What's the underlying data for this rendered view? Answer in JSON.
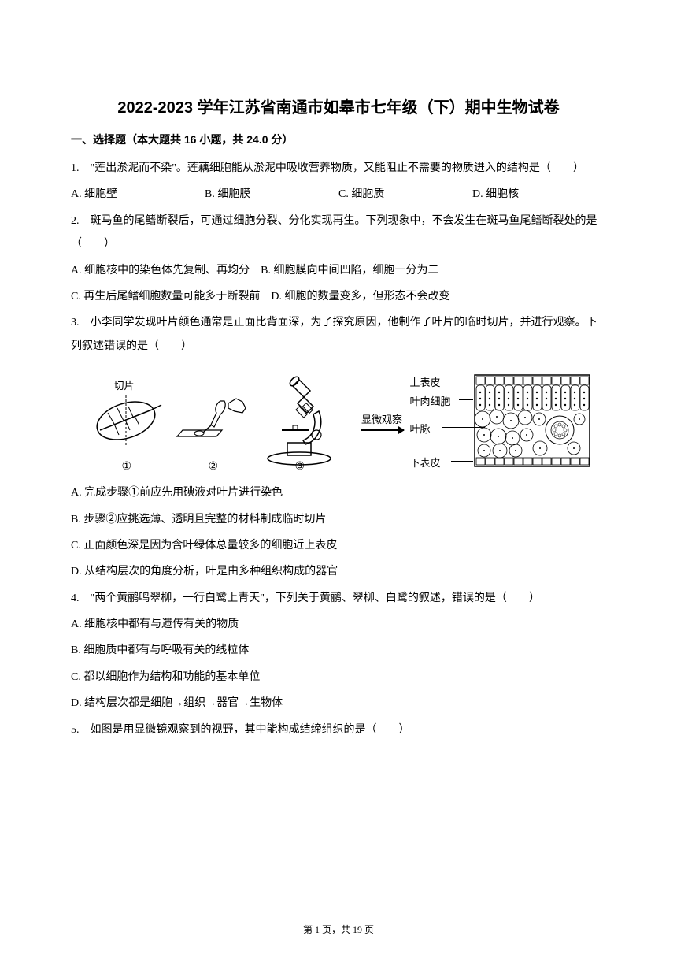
{
  "title": "2022-2023 学年江苏省南通市如皋市七年级（下）期中生物试卷",
  "section_header": "一、选择题（本大题共 16 小题，共 24.0 分）",
  "questions": [
    {
      "num": "1.",
      "text": "\"莲出淤泥而不染\"。莲藕细胞能从淤泥中吸收营养物质，又能阻止不需要的物质进入的结构是（　　）",
      "options": [
        "A. 细胞壁",
        "B. 细胞膜",
        "C. 细胞质",
        "D. 细胞核"
      ],
      "layout": "row4"
    },
    {
      "num": "2.",
      "text": "斑马鱼的尾鳍断裂后，可通过细胞分裂、分化实现再生。下列现象中，不会发生在斑马鱼尾鳍断裂处的是（　　）",
      "options": [
        "A. 细胞核中的染色体先复制、再均分　B. 细胞膜向中间凹陷，细胞一分为二",
        "C. 再生后尾鳍细胞数量可能多于断裂前　D. 细胞的数量变多，但形态不会改变"
      ],
      "layout": "lines"
    },
    {
      "num": "3.",
      "text": "小李同学发现叶片颜色通常是正面比背面深，为了探究原因，他制作了叶片的临时切片，并进行观察。下列叙述错误的是（　　）",
      "options": [
        "A. 完成步骤①前应先用碘液对叶片进行染色",
        "B. 步骤②应挑选薄、透明且完整的材料制成临时切片",
        "C. 正面颜色深是因为含叶绿体总量较多的细胞近上表皮",
        "D. 从结构层次的角度分析，叶是由多种组织构成的器官"
      ],
      "layout": "lines",
      "has_figure": true
    },
    {
      "num": "4.",
      "text": "\"两个黄鹂鸣翠柳，一行白鹭上青天\"，下列关于黄鹂、翠柳、白鹭的叙述，错误的是（　　）",
      "options": [
        "A. 细胞核中都有与遗传有关的物质",
        "B. 细胞质中都有与呼吸有关的线粒体",
        "C. 都以细胞作为结构和功能的基本单位",
        "D. 结构层次都是细胞→组织→器官→生物体"
      ],
      "layout": "lines"
    },
    {
      "num": "5.",
      "text": "如图是用显微镜观察到的视野，其中能构成结缔组织的是（　　）",
      "options": [],
      "layout": "lines"
    }
  ],
  "figure": {
    "leaf_label": "切片",
    "arrow_label": "显微观察",
    "num_labels": [
      "①",
      "②",
      "③"
    ],
    "right_labels": [
      "上表皮",
      "叶肉细胞",
      "叶脉",
      "下表皮"
    ]
  },
  "footer": "第 1 页，共 19 页",
  "colors": {
    "text": "#000000",
    "bg": "#ffffff"
  }
}
